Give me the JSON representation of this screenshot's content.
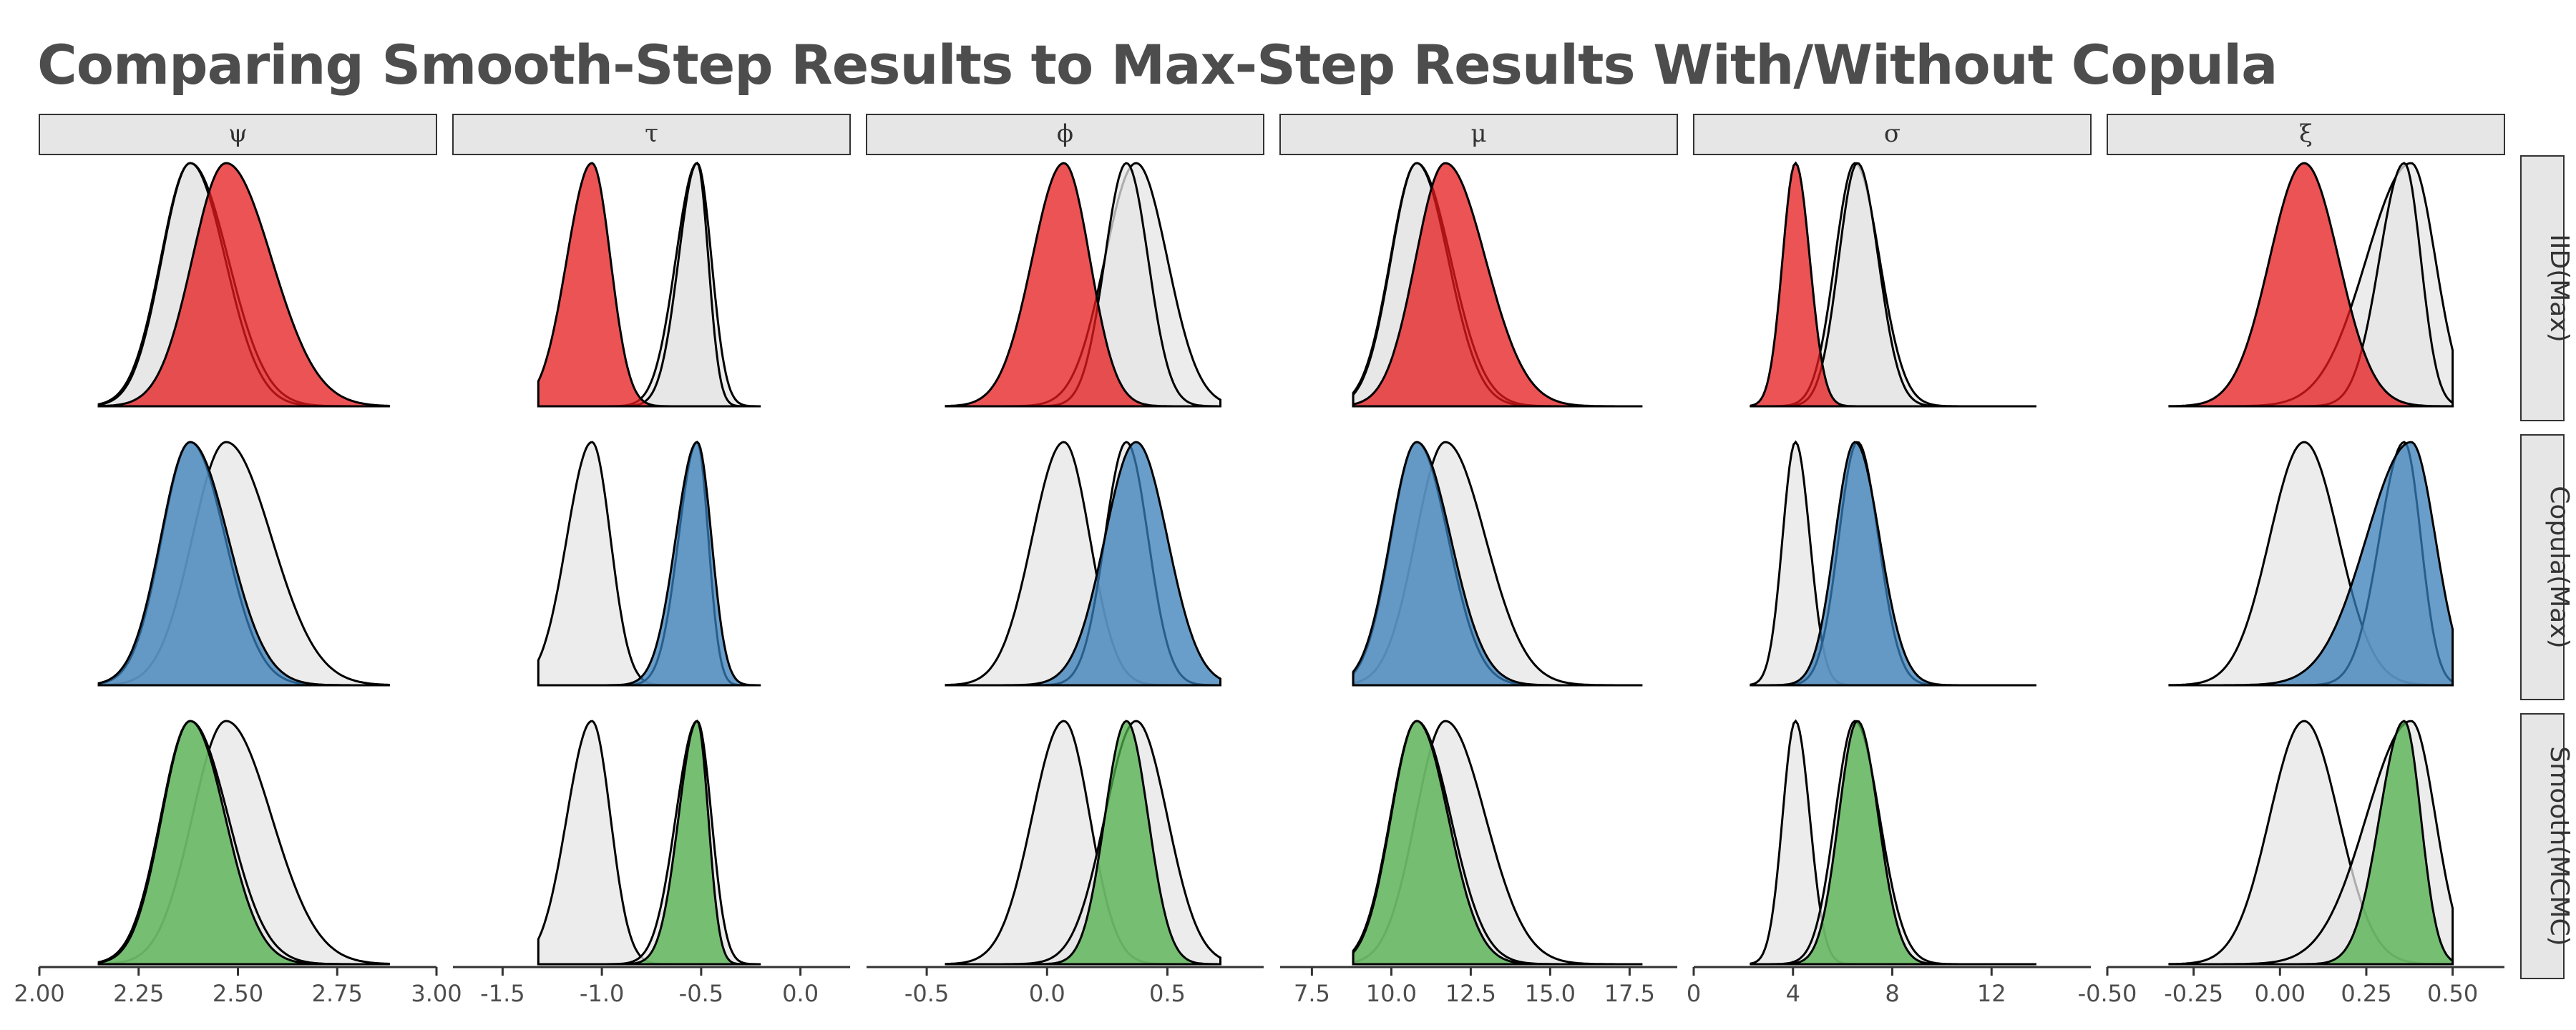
{
  "title": "Comparing Smooth-Step Results to Max-Step Results With/Without Copula",
  "colors": {
    "iid": "#e41a1c",
    "copula": "#377eb8",
    "smooth": "#4daf4a",
    "reference": "#e6e6e6",
    "strip_fill": "#e6e6e6"
  },
  "chart_data": {
    "type": "area",
    "chart_kind": "faceted density plot",
    "title": "Comparing Smooth-Step Results to Max-Step Results With/Without Copula",
    "grid": false,
    "legend": "none",
    "facet_columns": [
      {
        "label": "ψ",
        "xlim": [
          2.0,
          3.0
        ],
        "ticks": [
          2.0,
          2.25,
          2.5,
          2.75,
          3.0
        ],
        "tick_labels": [
          "2.00",
          "2.25",
          "2.50",
          "2.75",
          "3.00"
        ],
        "support": [
          2.15,
          2.88
        ],
        "densities": {
          "iid": {
            "mode": 2.47,
            "sd": 0.1,
            "skew": 0.3
          },
          "copula": {
            "mode": 2.38,
            "sd": 0.085,
            "skew": 0.25
          },
          "smooth": {
            "mode": 2.38,
            "sd": 0.08,
            "skew": 0.2
          }
        }
      },
      {
        "label": "τ",
        "xlim": [
          -1.75,
          0.25
        ],
        "ticks": [
          -1.5,
          -1.0,
          -0.5,
          0.0
        ],
        "tick_labels": [
          "-1.5",
          "-1.0",
          "-0.5",
          "0.0"
        ],
        "support": [
          -1.32,
          -0.2
        ],
        "densities": {
          "iid": {
            "mode": -1.05,
            "sd": 0.11,
            "skew": -0.3
          },
          "copula": {
            "mode": -0.52,
            "sd": 0.09,
            "skew": -0.4
          },
          "smooth": {
            "mode": -0.52,
            "sd": 0.075,
            "skew": -0.5
          }
        }
      },
      {
        "label": "ϕ",
        "xlim": [
          -0.75,
          0.9
        ],
        "ticks": [
          -0.5,
          0.0,
          0.5
        ],
        "tick_labels": [
          "-0.5",
          "0.0",
          "0.5"
        ],
        "support": [
          -0.42,
          0.72
        ],
        "densities": {
          "iid": {
            "mode": 0.07,
            "sd": 0.12,
            "skew": -0.2
          },
          "copula": {
            "mode": 0.37,
            "sd": 0.13,
            "skew": 0.0
          },
          "smooth": {
            "mode": 0.33,
            "sd": 0.09,
            "skew": 0.0
          }
        }
      },
      {
        "label": "μ",
        "xlim": [
          6.5,
          19.0
        ],
        "ticks": [
          7.5,
          10.0,
          12.5,
          15.0,
          17.5
        ],
        "tick_labels": [
          "7.5",
          "10.0",
          "12.5",
          "15.0",
          "17.5"
        ],
        "support": [
          8.8,
          17.9
        ],
        "densities": {
          "iid": {
            "mode": 11.7,
            "sd": 1.1,
            "skew": 0.3
          },
          "copula": {
            "mode": 10.8,
            "sd": 0.95,
            "skew": 0.25
          },
          "smooth": {
            "mode": 10.8,
            "sd": 0.9,
            "skew": 0.2
          }
        }
      },
      {
        "label": "σ",
        "xlim": [
          0.0,
          16.0
        ],
        "ticks": [
          0,
          4,
          8,
          12
        ],
        "tick_labels": [
          "0",
          "4",
          "8",
          "12"
        ],
        "support": [
          2.3,
          13.8
        ],
        "densities": {
          "iid": {
            "mode": 4.1,
            "sd": 0.55,
            "skew": 0.1
          },
          "copula": {
            "mode": 6.5,
            "sd": 0.9,
            "skew": 0.2
          },
          "smooth": {
            "mode": 6.6,
            "sd": 0.8,
            "skew": 0.1
          }
        }
      },
      {
        "label": "ξ",
        "xlim": [
          -0.5,
          0.65
        ],
        "ticks": [
          -0.5,
          -0.25,
          0.0,
          0.25,
          0.5
        ],
        "tick_labels": [
          "-0.50",
          "-0.25",
          "0.00",
          "0.25",
          "0.50"
        ],
        "support": [
          -0.32,
          0.5
        ],
        "densities": {
          "iid": {
            "mode": 0.07,
            "sd": 0.1,
            "skew": 0.0
          },
          "copula": {
            "mode": 0.38,
            "sd": 0.1,
            "skew": -0.6
          },
          "smooth": {
            "mode": 0.36,
            "sd": 0.06,
            "skew": -0.4
          }
        }
      }
    ],
    "facet_rows": [
      {
        "label": "IID(Max)",
        "key": "iid",
        "fill": "#e41a1c"
      },
      {
        "label": "Copula(Max)",
        "key": "copula",
        "fill": "#377eb8"
      },
      {
        "label": "Smooth(MCMC)",
        "key": "smooth",
        "fill": "#4daf4a"
      }
    ]
  }
}
